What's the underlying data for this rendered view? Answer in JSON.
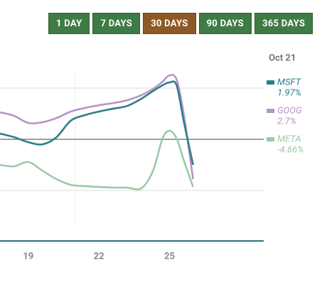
{
  "range_buttons": {
    "items": [
      "1 DAY",
      "7 DAYS",
      "30 DAYS",
      "90 DAYS",
      "365 DAYS"
    ],
    "active": 2
  },
  "chart_data": {
    "type": "line",
    "date_label": "Oct 21",
    "hover_x": 21,
    "x": [
      17.8,
      18.4,
      19,
      19.6,
      20.2,
      20.8,
      21.4,
      22,
      22.6,
      23.2,
      23.8,
      24.3,
      24.7,
      25,
      25.3,
      25.6,
      26
    ],
    "xlim": [
      17.8,
      29
    ],
    "xticks": [
      19,
      22,
      25
    ],
    "ylim": [
      -10,
      10
    ],
    "yticks": [
      -5,
      0,
      5
    ],
    "grid": true,
    "series": [
      {
        "name": "MSFT",
        "change": "1.97%",
        "color": "#2e7d8c",
        "values": [
          0.56,
          0.21,
          -0.28,
          -0.49,
          0.21,
          1.81,
          2.36,
          2.71,
          2.99,
          3.26,
          3.96,
          4.72,
          5.28,
          5.56,
          5.28,
          1.81,
          -2.5
        ]
      },
      {
        "name": "GOOG",
        "change": "2.7%",
        "color": "#b794c8",
        "values": [
          2.64,
          2.29,
          1.6,
          1.67,
          2.08,
          2.71,
          3.06,
          3.33,
          3.54,
          3.82,
          4.31,
          4.93,
          5.63,
          6.25,
          5.83,
          2.5,
          -3.89
        ]
      },
      {
        "name": "META",
        "change": "-4.66%",
        "color": "#9ccaa8",
        "values": [
          -2.5,
          -2.64,
          -2.22,
          -3.06,
          -3.89,
          -4.44,
          -4.58,
          -4.65,
          -4.72,
          -4.72,
          -4.79,
          -3.06,
          0.07,
          0.83,
          0.07,
          -2.01,
          -4.65
        ]
      }
    ]
  }
}
